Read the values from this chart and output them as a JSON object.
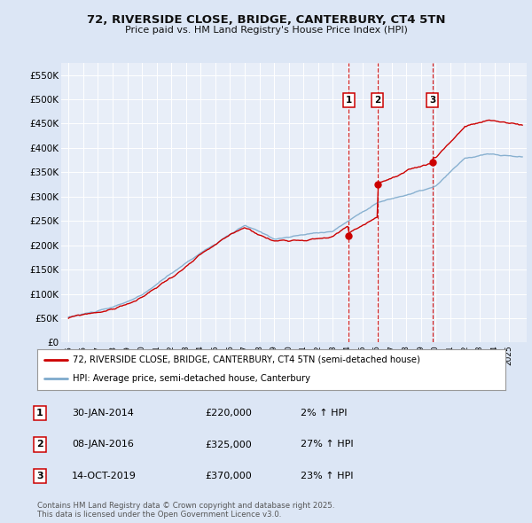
{
  "title": "72, RIVERSIDE CLOSE, BRIDGE, CANTERBURY, CT4 5TN",
  "subtitle": "Price paid vs. HM Land Registry's House Price Index (HPI)",
  "ylabel_ticks": [
    "£0",
    "£50K",
    "£100K",
    "£150K",
    "£200K",
    "£250K",
    "£300K",
    "£350K",
    "£400K",
    "£450K",
    "£500K",
    "£550K"
  ],
  "ytick_values": [
    0,
    50000,
    100000,
    150000,
    200000,
    250000,
    300000,
    350000,
    400000,
    450000,
    500000,
    550000
  ],
  "ylim": [
    0,
    575000
  ],
  "xlim_start": 1994.5,
  "xlim_end": 2026.2,
  "background_color": "#dce6f5",
  "plot_bg_color": "#e8eef8",
  "grid_color": "#ffffff",
  "sale_dates": [
    2014.08,
    2016.03,
    2019.79
  ],
  "sale_prices": [
    220000,
    325000,
    370000
  ],
  "sale_labels": [
    "1",
    "2",
    "3"
  ],
  "legend_line1": "72, RIVERSIDE CLOSE, BRIDGE, CANTERBURY, CT4 5TN (semi-detached house)",
  "legend_line2": "HPI: Average price, semi-detached house, Canterbury",
  "table_data": [
    [
      "1",
      "30-JAN-2014",
      "£220,000",
      "2% ↑ HPI"
    ],
    [
      "2",
      "08-JAN-2016",
      "£325,000",
      "27% ↑ HPI"
    ],
    [
      "3",
      "14-OCT-2019",
      "£370,000",
      "23% ↑ HPI"
    ]
  ],
  "footnote": "Contains HM Land Registry data © Crown copyright and database right 2025.\nThis data is licensed under the Open Government Licence v3.0.",
  "red_color": "#cc0000",
  "blue_color": "#7eaacc"
}
